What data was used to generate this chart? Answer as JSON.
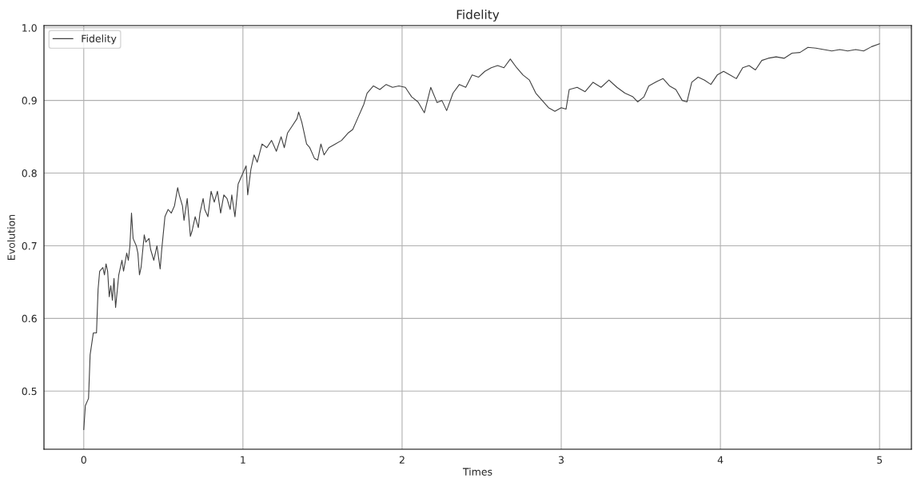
{
  "chart_data": {
    "type": "line",
    "title": "Fidelity",
    "xlabel": "Times",
    "ylabel": "Evolution",
    "x": [
      0,
      0.01,
      0.03,
      0.04,
      0.06,
      0.08,
      0.09,
      0.1,
      0.12,
      0.13,
      0.14,
      0.15,
      0.16,
      0.17,
      0.18,
      0.19,
      0.2,
      0.22,
      0.24,
      0.25,
      0.27,
      0.28,
      0.29,
      0.3,
      0.31,
      0.33,
      0.34,
      0.35,
      0.36,
      0.38,
      0.39,
      0.41,
      0.42,
      0.44,
      0.46,
      0.48,
      0.49,
      0.51,
      0.53,
      0.55,
      0.57,
      0.59,
      0.6,
      0.62,
      0.63,
      0.65,
      0.67,
      0.68,
      0.7,
      0.72,
      0.73,
      0.75,
      0.76,
      0.78,
      0.8,
      0.82,
      0.84,
      0.86,
      0.88,
      0.9,
      0.92,
      0.93,
      0.95,
      0.97,
      1.0,
      1.02,
      1.03,
      1.05,
      1.07,
      1.09,
      1.12,
      1.15,
      1.18,
      1.21,
      1.24,
      1.26,
      1.28,
      1.31,
      1.34,
      1.35,
      1.37,
      1.4,
      1.42,
      1.45,
      1.47,
      1.49,
      1.51,
      1.54,
      1.58,
      1.62,
      1.66,
      1.69,
      1.72,
      1.76,
      1.78,
      1.82,
      1.86,
      1.9,
      1.94,
      1.98,
      2.02,
      2.06,
      2.1,
      2.14,
      2.18,
      2.22,
      2.25,
      2.28,
      2.32,
      2.36,
      2.4,
      2.44,
      2.48,
      2.52,
      2.56,
      2.6,
      2.64,
      2.68,
      2.72,
      2.76,
      2.8,
      2.84,
      2.88,
      2.92,
      2.96,
      3.0,
      3.03,
      3.05,
      3.1,
      3.15,
      3.2,
      3.25,
      3.3,
      3.35,
      3.4,
      3.45,
      3.48,
      3.52,
      3.55,
      3.6,
      3.64,
      3.68,
      3.72,
      3.76,
      3.79,
      3.82,
      3.86,
      3.9,
      3.94,
      3.98,
      4.02,
      4.06,
      4.1,
      4.14,
      4.18,
      4.22,
      4.26,
      4.3,
      4.35,
      4.4,
      4.45,
      4.5,
      4.55,
      4.6,
      4.65,
      4.7,
      4.75,
      4.8,
      4.85,
      4.9,
      4.95,
      5.0
    ],
    "series": [
      {
        "name": "Fidelity",
        "color": "#404040",
        "values": [
          0.447,
          0.48,
          0.49,
          0.55,
          0.58,
          0.58,
          0.64,
          0.665,
          0.67,
          0.66,
          0.675,
          0.665,
          0.63,
          0.645,
          0.625,
          0.655,
          0.615,
          0.66,
          0.68,
          0.665,
          0.69,
          0.68,
          0.7,
          0.745,
          0.71,
          0.7,
          0.69,
          0.66,
          0.67,
          0.715,
          0.705,
          0.71,
          0.695,
          0.68,
          0.7,
          0.668,
          0.695,
          0.74,
          0.75,
          0.745,
          0.755,
          0.78,
          0.77,
          0.755,
          0.735,
          0.765,
          0.713,
          0.72,
          0.74,
          0.725,
          0.745,
          0.765,
          0.75,
          0.74,
          0.775,
          0.76,
          0.775,
          0.745,
          0.77,
          0.765,
          0.75,
          0.77,
          0.74,
          0.785,
          0.8,
          0.81,
          0.77,
          0.805,
          0.825,
          0.815,
          0.84,
          0.835,
          0.845,
          0.83,
          0.85,
          0.835,
          0.855,
          0.865,
          0.875,
          0.884,
          0.87,
          0.84,
          0.835,
          0.82,
          0.818,
          0.84,
          0.825,
          0.835,
          0.84,
          0.845,
          0.855,
          0.86,
          0.875,
          0.895,
          0.91,
          0.92,
          0.915,
          0.922,
          0.918,
          0.92,
          0.918,
          0.905,
          0.898,
          0.883,
          0.918,
          0.897,
          0.9,
          0.886,
          0.91,
          0.922,
          0.918,
          0.935,
          0.932,
          0.94,
          0.945,
          0.948,
          0.945,
          0.957,
          0.945,
          0.935,
          0.928,
          0.91,
          0.9,
          0.89,
          0.885,
          0.89,
          0.888,
          0.915,
          0.918,
          0.912,
          0.925,
          0.918,
          0.928,
          0.918,
          0.91,
          0.905,
          0.898,
          0.905,
          0.92,
          0.926,
          0.93,
          0.92,
          0.915,
          0.9,
          0.898,
          0.925,
          0.932,
          0.928,
          0.922,
          0.935,
          0.94,
          0.935,
          0.93,
          0.945,
          0.948,
          0.942,
          0.955,
          0.958,
          0.96,
          0.958,
          0.965,
          0.966,
          0.973,
          0.972,
          0.97,
          0.968,
          0.97,
          0.968,
          0.97,
          0.968,
          0.974,
          0.978
        ]
      }
    ],
    "xlim": [
      -0.25,
      5.2
    ],
    "ylim": [
      0.42,
      1.003
    ],
    "xticks": [
      0,
      1,
      2,
      3,
      4,
      5
    ],
    "yticks": [
      0.5,
      0.6,
      0.7,
      0.8,
      0.9,
      {
        "value": 1.0,
        "label": "1.0"
      }
    ],
    "grid": true,
    "legend": "top left",
    "line_style": "solid",
    "marker": "none"
  }
}
